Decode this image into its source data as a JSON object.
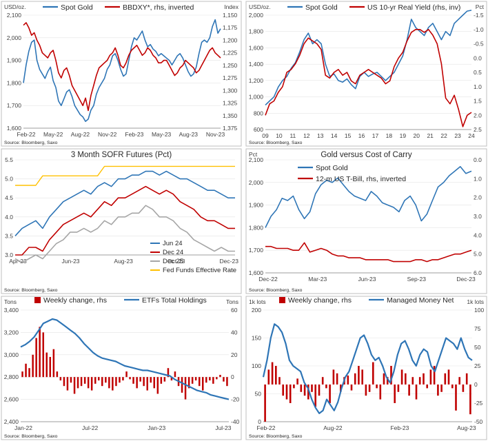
{
  "colors": {
    "blue": "#2E75B6",
    "red": "#C00000",
    "gray": "#A6A6A6",
    "orange": "#FFC000",
    "frame": "#BFBFBF",
    "grid": "#E3E3E3",
    "axis": "#404040",
    "text": "#262626"
  },
  "chart_data": [
    {
      "type": "line",
      "left_unit": "USD/oz.",
      "right_unit": "Index",
      "legend": [
        "Spot Gold",
        "BBDXY*, rhs, inverted"
      ],
      "source": "Source: Bloomberg, Saxo",
      "x_ticks": [
        "Feb-22",
        "May-22",
        "Aug-22",
        "Nov-22",
        "Feb-23",
        "May-23",
        "Aug-23",
        "Nov-23"
      ],
      "ylim_left": [
        1600,
        2100
      ],
      "yticks_left": [
        "2,100",
        "2,000",
        "1,900",
        "1,800",
        "1,700",
        "1,600"
      ],
      "ylim_right_inverted": [
        1150,
        1375
      ],
      "yticks_right": [
        "1,150",
        "1,175",
        "1,200",
        "1,225",
        "1,250",
        "1,275",
        "1,300",
        "1,325",
        "1,350",
        "1,375"
      ],
      "series": [
        {
          "name": "Spot Gold",
          "axis": "left",
          "values": [
            1800,
            1880,
            1940,
            1980,
            1990,
            1900,
            1860,
            1840,
            1820,
            1850,
            1870,
            1810,
            1780,
            1720,
            1700,
            1730,
            1760,
            1770,
            1740,
            1700,
            1680,
            1660,
            1650,
            1630,
            1640,
            1680,
            1700,
            1750,
            1780,
            1800,
            1820,
            1860,
            1880,
            1920,
            1930,
            1900,
            1860,
            1830,
            1840,
            1900,
            1960,
            2000,
            1990,
            2010,
            2030,
            1990,
            1960,
            1970,
            1950,
            1940,
            1920,
            1930,
            1920,
            1910,
            1900,
            1880,
            1900,
            1920,
            1930,
            1910,
            1880,
            1850,
            1830,
            1840,
            1870,
            1930,
            1980,
            1990,
            1980,
            2000,
            2050,
            2080,
            2020,
            2040
          ]
        },
        {
          "name": "BBDXY*, rhs, inverted",
          "axis": "right",
          "values": [
            1170,
            1165,
            1175,
            1190,
            1185,
            1200,
            1210,
            1225,
            1230,
            1235,
            1225,
            1220,
            1240,
            1265,
            1275,
            1260,
            1255,
            1270,
            1290,
            1300,
            1310,
            1320,
            1330,
            1315,
            1340,
            1310,
            1290,
            1270,
            1255,
            1250,
            1245,
            1240,
            1230,
            1225,
            1215,
            1230,
            1250,
            1255,
            1245,
            1230,
            1220,
            1215,
            1210,
            1220,
            1230,
            1225,
            1215,
            1220,
            1230,
            1235,
            1245,
            1245,
            1240,
            1240,
            1250,
            1260,
            1270,
            1265,
            1255,
            1250,
            1240,
            1245,
            1250,
            1255,
            1265,
            1260,
            1250,
            1240,
            1230,
            1220,
            1215,
            1225,
            1230,
            1235
          ]
        }
      ]
    },
    {
      "type": "line",
      "left_unit": "USD/oz.",
      "right_unit": "Pct",
      "legend": [
        "Spot Gold",
        "US 10-yr Real Yield (rhs, inv)"
      ],
      "source": "Source: Bloomberg, Saxo",
      "x_ticks": [
        "09",
        "10",
        "11",
        "12",
        "13",
        "14",
        "15",
        "16",
        "17",
        "18",
        "19",
        "20",
        "21",
        "22",
        "23",
        "24"
      ],
      "ylim_left": [
        600,
        2000
      ],
      "yticks_left": [
        "2,000",
        "1,800",
        "1,600",
        "1,400",
        "1,200",
        "1,000",
        "800",
        "600"
      ],
      "ylim_right_inverted": [
        -1.5,
        2.5
      ],
      "yticks_right": [
        "-1.5",
        "-1.0",
        "-0.5",
        "0.0",
        "0.5",
        "1.0",
        "1.5",
        "2.0",
        "2.5"
      ],
      "series": [
        {
          "name": "Spot Gold",
          "axis": "left",
          "values": [
            900,
            950,
            1000,
            1120,
            1200,
            1250,
            1350,
            1420,
            1550,
            1700,
            1780,
            1650,
            1700,
            1650,
            1400,
            1250,
            1280,
            1200,
            1180,
            1220,
            1150,
            1100,
            1250,
            1300,
            1250,
            1280,
            1300,
            1250,
            1200,
            1250,
            1300,
            1400,
            1500,
            1700,
            1950,
            1850,
            1800,
            1750,
            1850,
            1900,
            1800,
            1700,
            1800,
            1750,
            1900,
            1950,
            2000,
            2050,
            2060
          ]
        },
        {
          "name": "US 10-yr Real Yield (rhs, inv)",
          "axis": "right",
          "values": [
            2.0,
            1.6,
            1.5,
            1.2,
            1.0,
            0.5,
            0.4,
            0.2,
            -0.1,
            -0.5,
            -0.7,
            -0.6,
            -0.5,
            -0.3,
            0.6,
            0.7,
            0.5,
            0.4,
            0.6,
            0.5,
            0.8,
            0.9,
            0.6,
            0.5,
            0.4,
            0.5,
            0.6,
            0.7,
            0.9,
            0.8,
            0.3,
            0.0,
            -0.2,
            -0.6,
            -0.9,
            -1.0,
            -1.0,
            -0.9,
            -1.0,
            -0.8,
            -0.5,
            0.2,
            1.4,
            1.6,
            1.3,
            1.8,
            2.4,
            2.0,
            1.9
          ]
        }
      ]
    },
    {
      "type": "line",
      "title": "3 Month SOFR Futures (Pct)",
      "source": "Source: Bloomberg, Saxo",
      "x_ticks": [
        "Apr-23",
        "Jun-23",
        "Aug-23",
        "Oct-23",
        "Dec-23"
      ],
      "ylim": [
        3.0,
        5.5
      ],
      "yticks": [
        "5.5",
        "5.0",
        "4.5",
        "4.0",
        "3.5",
        "3.0"
      ],
      "legend": [
        "Jun 24",
        "Dec 24",
        "Dec 25",
        "Fed Funds Effective Rate"
      ],
      "series": [
        {
          "name": "Jun 24",
          "values": [
            3.5,
            3.7,
            3.8,
            3.9,
            3.7,
            4.0,
            4.2,
            4.4,
            4.5,
            4.6,
            4.7,
            4.6,
            4.8,
            4.9,
            4.8,
            5.0,
            5.0,
            5.1,
            5.1,
            5.2,
            5.2,
            5.1,
            5.2,
            5.1,
            5.0,
            5.0,
            4.9,
            4.8,
            4.7,
            4.7,
            4.6,
            4.5,
            4.5
          ]
        },
        {
          "name": "Dec 24",
          "values": [
            3.0,
            3.0,
            3.2,
            3.2,
            3.1,
            3.4,
            3.6,
            3.8,
            3.9,
            4.0,
            4.1,
            4.0,
            4.2,
            4.4,
            4.3,
            4.5,
            4.5,
            4.6,
            4.7,
            4.8,
            4.7,
            4.6,
            4.7,
            4.6,
            4.4,
            4.3,
            4.2,
            4.0,
            3.9,
            3.9,
            3.8,
            3.7,
            3.7
          ]
        },
        {
          "name": "Dec 25",
          "values": [
            2.9,
            2.8,
            2.9,
            3.0,
            2.9,
            3.1,
            3.3,
            3.4,
            3.6,
            3.6,
            3.7,
            3.6,
            3.7,
            3.9,
            3.8,
            4.0,
            4.0,
            4.1,
            4.1,
            4.3,
            4.2,
            4.0,
            4.0,
            3.9,
            3.7,
            3.6,
            3.4,
            3.3,
            3.2,
            3.1,
            3.2,
            3.1,
            3.1
          ]
        },
        {
          "name": "Fed Funds Effective Rate",
          "values": [
            4.83,
            4.83,
            4.83,
            4.83,
            5.08,
            5.08,
            5.08,
            5.08,
            5.08,
            5.08,
            5.08,
            5.08,
            5.08,
            5.33,
            5.33,
            5.33,
            5.33,
            5.33,
            5.33,
            5.33,
            5.33,
            5.33,
            5.33,
            5.33,
            5.33,
            5.33,
            5.33,
            5.33,
            5.33,
            5.33,
            5.33,
            5.33,
            5.33
          ]
        }
      ]
    },
    {
      "type": "line",
      "title": "Gold versus Cost of Carry",
      "left_unit": "Pct",
      "source": "Source: Bloomberg, Saxo",
      "x_ticks": [
        "Dec-22",
        "Mar-23",
        "Jun-23",
        "Sep-23",
        "Dec-23"
      ],
      "ylim_left": [
        1600,
        2100
      ],
      "yticks_left": [
        "2,100",
        "2,000",
        "1,900",
        "1,800",
        "1,700",
        "1,600"
      ],
      "ylim_right_inverted": [
        0.0,
        6.0
      ],
      "yticks_right": [
        "0.0",
        "1.0",
        "2.0",
        "3.0",
        "4.0",
        "5.0",
        "6.0"
      ],
      "legend": [
        "Spot Gold",
        "12-m US T-Bill, rhs, inverted"
      ],
      "series": [
        {
          "name": "Spot Gold",
          "axis": "left",
          "values": [
            1800,
            1850,
            1880,
            1930,
            1920,
            1940,
            1880,
            1840,
            1870,
            1950,
            1990,
            2010,
            2000,
            2020,
            1990,
            1960,
            1940,
            1930,
            1920,
            1960,
            1940,
            1910,
            1900,
            1890,
            1870,
            1920,
            1940,
            1900,
            1830,
            1860,
            1920,
            1980,
            2000,
            2030,
            2050,
            2070,
            2040,
            2050
          ]
        },
        {
          "name": "12-m US T-Bill, rhs, inverted",
          "axis": "right",
          "values": [
            4.6,
            4.6,
            4.7,
            4.7,
            4.7,
            4.8,
            4.8,
            4.4,
            4.9,
            4.8,
            4.7,
            4.8,
            5.0,
            5.1,
            5.1,
            5.2,
            5.2,
            5.2,
            5.3,
            5.3,
            5.3,
            5.3,
            5.3,
            5.4,
            5.4,
            5.4,
            5.4,
            5.3,
            5.3,
            5.4,
            5.3,
            5.3,
            5.2,
            5.1,
            5.0,
            5.0,
            4.9,
            4.8
          ]
        }
      ]
    },
    {
      "type": "bar+line",
      "left_unit": "Tons",
      "right_unit": "Tons",
      "legend": [
        "Weekly change, rhs",
        "ETFs Total Holdings"
      ],
      "source": "Source: Bloomberg, Saxo",
      "x_ticks": [
        "Jan-22",
        "Jul-22",
        "Jan-23",
        "Jul-23"
      ],
      "ylim_left": [
        2400,
        3400
      ],
      "yticks_left": [
        "3,400",
        "3,200",
        "3,000",
        "2,800",
        "2,600",
        "2,400"
      ],
      "ylim_right": [
        -40,
        60
      ],
      "yticks_right": [
        "60",
        "40",
        "20",
        "0",
        "-20",
        "-40"
      ],
      "series": [
        {
          "name": "ETFs Total Holdings",
          "axis": "left",
          "values": [
            3070,
            3090,
            3120,
            3160,
            3220,
            3280,
            3300,
            3320,
            3310,
            3280,
            3250,
            3220,
            3190,
            3150,
            3100,
            3060,
            3020,
            2990,
            2970,
            2960,
            2950,
            2940,
            2920,
            2900,
            2890,
            2880,
            2870,
            2860,
            2860,
            2850,
            2840,
            2830,
            2820,
            2810,
            2780,
            2760,
            2740,
            2720,
            2700,
            2680,
            2670,
            2660,
            2640,
            2630,
            2620,
            2610,
            2600
          ]
        },
        {
          "name": "Weekly change, rhs",
          "axis": "right",
          "values": [
            5,
            12,
            8,
            20,
            35,
            45,
            40,
            22,
            18,
            25,
            5,
            -3,
            -8,
            -12,
            -5,
            -15,
            -10,
            -8,
            -6,
            -10,
            -12,
            -6,
            -3,
            -8,
            -5,
            -10,
            -12,
            -8,
            -5,
            -3,
            5,
            -2,
            -6,
            -10,
            -4,
            -8,
            -12,
            -5,
            -10,
            -15,
            -6,
            -4,
            8,
            -3,
            5,
            -8,
            -14,
            -20,
            -10,
            -6,
            -3,
            -8,
            -12,
            -5,
            -3,
            -6,
            -2,
            2,
            -4,
            -8
          ]
        }
      ]
    },
    {
      "type": "bar+line",
      "left_unit": "1k lots",
      "right_unit": "1k lots",
      "legend": [
        "Weekly change, rhs",
        "Managed Money Net"
      ],
      "source": "Source: Bloomberg, Saxo",
      "x_ticks": [
        "Feb-22",
        "Aug-22",
        "Feb-23",
        "Aug-23"
      ],
      "ylim_left": [
        0,
        200
      ],
      "yticks_left": [
        "200",
        "150",
        "100",
        "50",
        "0"
      ],
      "ylim_right": [
        -50,
        100
      ],
      "yticks_right": [
        "100",
        "75",
        "50",
        "25",
        "0",
        "-25",
        "-50"
      ],
      "series": [
        {
          "name": "Managed Money Net",
          "axis": "left",
          "values": [
            80,
            110,
            150,
            175,
            170,
            160,
            140,
            110,
            100,
            95,
            90,
            70,
            60,
            40,
            25,
            15,
            20,
            40,
            30,
            20,
            35,
            60,
            80,
            90,
            110,
            130,
            150,
            155,
            140,
            120,
            110,
            115,
            100,
            80,
            70,
            90,
            120,
            140,
            145,
            130,
            110,
            100,
            120,
            130,
            125,
            100,
            90,
            110,
            130,
            150,
            145,
            140,
            130,
            150,
            130,
            115,
            110
          ]
        },
        {
          "name": "Weekly change, rhs",
          "axis": "right",
          "values": [
            -50,
            20,
            30,
            25,
            10,
            -15,
            -20,
            -25,
            -5,
            8,
            -10,
            -15,
            -20,
            -10,
            -30,
            -15,
            10,
            -5,
            -25,
            20,
            15,
            -10,
            10,
            12,
            -8,
            15,
            25,
            20,
            -15,
            -10,
            30,
            -5,
            -20,
            15,
            10,
            25,
            -25,
            -10,
            20,
            15,
            -15,
            10,
            -20,
            10,
            15,
            -5,
            20,
            25,
            -15,
            -10,
            15,
            20,
            -5,
            -35,
            10,
            -10,
            15,
            -40
          ]
        }
      ]
    }
  ]
}
